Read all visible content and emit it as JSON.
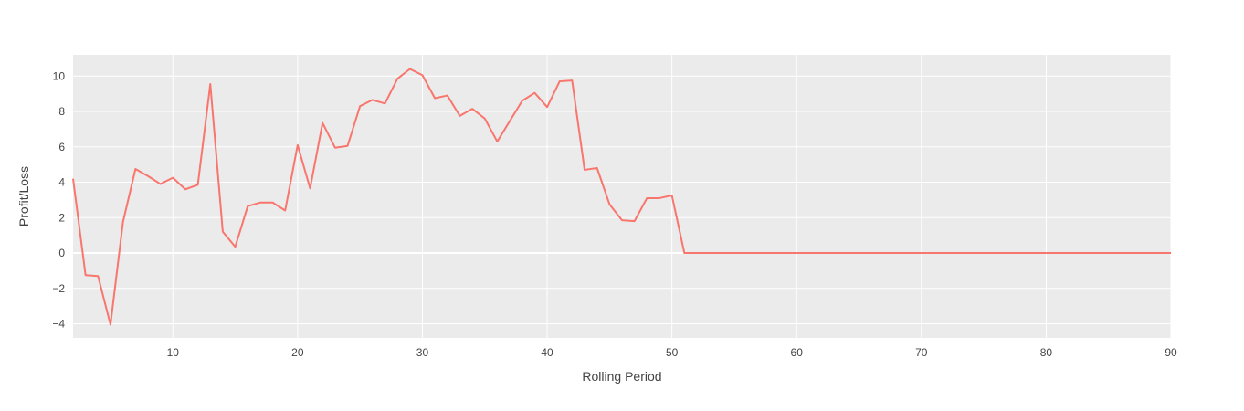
{
  "chart_data": {
    "type": "line",
    "xlabel": "Rolling Period",
    "ylabel": "Profit/Loss",
    "xlim": [
      2,
      90
    ],
    "ylim": [
      -4.8,
      11.2
    ],
    "xticks": [
      10,
      20,
      30,
      40,
      50,
      60,
      70,
      80,
      90
    ],
    "yticks": [
      -4,
      -2,
      0,
      2,
      4,
      6,
      8,
      10
    ],
    "grid": true,
    "colors": {
      "line": "#f8766d",
      "plot_bg": "#ebebeb",
      "grid": "#ffffff",
      "page_bg": "#ffffff"
    },
    "series": [
      {
        "x": [
          2,
          3,
          4,
          5,
          6,
          7,
          8,
          9,
          10,
          11,
          12,
          13,
          14,
          15,
          16,
          17,
          18,
          19,
          20,
          21,
          22,
          23,
          24,
          25,
          26,
          27,
          28,
          29,
          30,
          31,
          32,
          33,
          34,
          35,
          36,
          37,
          38,
          39,
          40,
          41,
          42,
          43,
          44,
          45,
          46,
          47,
          48,
          49,
          50,
          51,
          52,
          53,
          54,
          55,
          56,
          57,
          58,
          59,
          60,
          61,
          62,
          63,
          64,
          65,
          66,
          67,
          68,
          69,
          70,
          71,
          72,
          73,
          74,
          75,
          76,
          77,
          78,
          79,
          80,
          81,
          82,
          83,
          84,
          85,
          86,
          87,
          88,
          89,
          90
        ],
        "values": [
          4.2,
          -1.25,
          -1.3,
          -4.05,
          1.75,
          4.75,
          4.35,
          3.9,
          4.25,
          3.6,
          3.85,
          9.55,
          1.2,
          0.35,
          2.65,
          2.85,
          2.85,
          2.4,
          6.1,
          3.65,
          7.35,
          5.95,
          6.05,
          8.3,
          8.65,
          8.45,
          9.85,
          10.4,
          10.05,
          8.75,
          8.9,
          7.75,
          8.15,
          7.6,
          6.3,
          7.45,
          8.6,
          9.05,
          8.25,
          9.7,
          9.75,
          4.7,
          4.8,
          2.75,
          1.85,
          1.8,
          3.1,
          3.1,
          3.25,
          0,
          0,
          0,
          0,
          0,
          0,
          0,
          0,
          0,
          0,
          0,
          0,
          0,
          0,
          0,
          0,
          0,
          0,
          0,
          0,
          0,
          0,
          0,
          0,
          0,
          0,
          0,
          0,
          0,
          0,
          0,
          0,
          0,
          0,
          0,
          0,
          0,
          0,
          0,
          0
        ]
      }
    ]
  }
}
